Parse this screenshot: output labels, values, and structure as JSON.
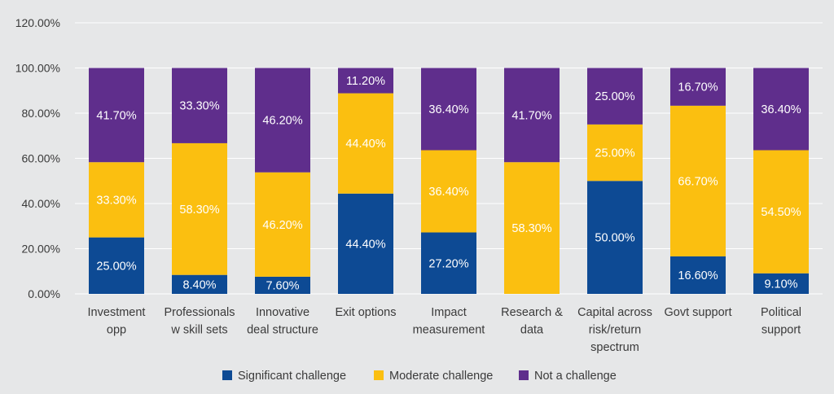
{
  "chart_data": {
    "type": "bar",
    "stacked": true,
    "title": "",
    "xlabel": "",
    "ylabel": "",
    "ylim": [
      0,
      120
    ],
    "ytick_values": [
      0,
      20,
      40,
      60,
      80,
      100,
      120
    ],
    "ytick_labels": [
      "0.00%",
      "20.00%",
      "40.00%",
      "60.00%",
      "80.00%",
      "100.00%",
      "120.00%"
    ],
    "grid": true,
    "legend_position": "bottom-center",
    "categories": [
      [
        "Investment",
        "opp"
      ],
      [
        "Professionals",
        "w skill sets"
      ],
      [
        "Innovative",
        "deal structure"
      ],
      [
        "Exit options"
      ],
      [
        "Impact",
        "measurement"
      ],
      [
        "Research &",
        "data"
      ],
      [
        "Capital across",
        "risk/return",
        "spectrum"
      ],
      [
        "Govt support"
      ],
      [
        "Political",
        "support"
      ]
    ],
    "series": [
      {
        "name": "Significant challenge",
        "color": "#0d4a94",
        "values": [
          25.0,
          8.4,
          7.6,
          44.4,
          27.2,
          0,
          50.0,
          16.6,
          9.1
        ],
        "labels": [
          "25.00%",
          "8.40%",
          "7.60%",
          "44.40%",
          "27.20%",
          "",
          "50.00%",
          "16.60%",
          "9.10%"
        ]
      },
      {
        "name": "Moderate challenge",
        "color": "#fbbf10",
        "values": [
          33.3,
          58.3,
          46.2,
          44.4,
          36.4,
          58.3,
          25.0,
          66.7,
          54.5
        ],
        "labels": [
          "33.30%",
          "58.30%",
          "46.20%",
          "44.40%",
          "36.40%",
          "58.30%",
          "25.00%",
          "66.70%",
          "54.50%"
        ]
      },
      {
        "name": "Not a challenge",
        "color": "#5f2e8c",
        "values": [
          41.7,
          33.3,
          46.2,
          11.2,
          36.4,
          41.7,
          25.0,
          16.7,
          36.4
        ],
        "labels": [
          "41.70%",
          "33.30%",
          "46.20%",
          "11.20%",
          "36.40%",
          "41.70%",
          "25.00%",
          "16.70%",
          "36.40%"
        ]
      }
    ]
  }
}
